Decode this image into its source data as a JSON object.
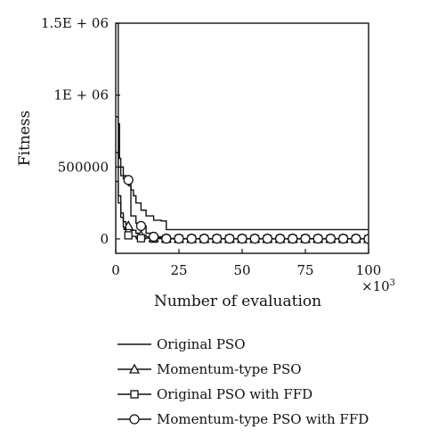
{
  "chart_data": {
    "type": "line",
    "title": "",
    "xlabel": "Number of evaluation",
    "x_multiplier_label": "×10",
    "x_multiplier_exponent": "3",
    "ylabel": "Fitness",
    "xlim": [
      0,
      100
    ],
    "ylim": [
      -100000,
      1500000
    ],
    "x_ticks": [
      0,
      25,
      50,
      75,
      100
    ],
    "x_tick_labels": [
      "0",
      "25",
      "50",
      "75",
      "100"
    ],
    "y_ticks": [
      0,
      500000,
      1000000,
      1500000
    ],
    "y_tick_labels": [
      "0",
      "500000",
      "1E + 06",
      "1.5E + 06"
    ],
    "grid": false,
    "legend_position": "below",
    "series": [
      {
        "name": "Original PSO",
        "marker": "none",
        "x": [
          0,
          0.5,
          1,
          1.5,
          2,
          3,
          4,
          5,
          6,
          7,
          8,
          10,
          12,
          15,
          18,
          20,
          100
        ],
        "y": [
          1500000,
          1500000,
          800000,
          560000,
          500000,
          440000,
          400000,
          370000,
          340000,
          300000,
          250000,
          200000,
          160000,
          130000,
          125000,
          65000,
          65000
        ]
      },
      {
        "name": "Momentum-type PSO",
        "marker": "triangle",
        "x": [
          0,
          1,
          2,
          3,
          4,
          5,
          6,
          8,
          10,
          12,
          15,
          20,
          25,
          100
        ],
        "y": [
          400000,
          250000,
          180000,
          120000,
          100000,
          90000,
          60000,
          40000,
          25000,
          15000,
          8000,
          3000,
          1000,
          0
        ]
      },
      {
        "name": "Original PSO with FFD",
        "marker": "square",
        "x": [
          0,
          1,
          2,
          3,
          4,
          5,
          6,
          8,
          10,
          15,
          20,
          100
        ],
        "y": [
          600000,
          300000,
          150000,
          80000,
          40000,
          25000,
          18000,
          10000,
          5000,
          2000,
          500,
          0
        ]
      },
      {
        "name": "Momentum-type PSO with FFD",
        "marker": "circle",
        "x": [
          0,
          1,
          2,
          3,
          4,
          5,
          6,
          8,
          10,
          12,
          15,
          20,
          100
        ],
        "y": [
          850000,
          500000,
          440000,
          420000,
          415000,
          410000,
          160000,
          110000,
          90000,
          40000,
          15000,
          2000,
          0
        ]
      }
    ]
  }
}
